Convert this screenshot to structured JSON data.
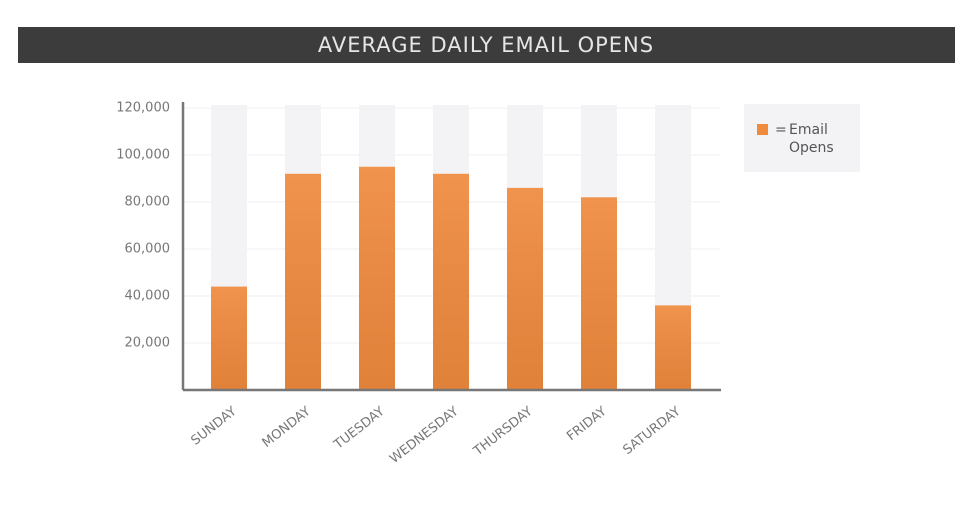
{
  "chart_data": {
    "type": "bar",
    "title": "AVERAGE DAILY EMAIL OPENS",
    "categories": [
      "SUNDAY",
      "MONDAY",
      "TUESDAY",
      "WEDNESDAY",
      "THURSDAY",
      "FRIDAY",
      "SATURDAY"
    ],
    "series": [
      {
        "name": "Email Opens",
        "color": "#ef8a3e",
        "values": [
          44000,
          92000,
          95000,
          92000,
          86000,
          82000,
          36000
        ]
      }
    ],
    "legend_separator": "=",
    "legend_position": "right",
    "ylim": [
      0,
      120000
    ],
    "yticks": [
      {
        "value": 20000,
        "label": "20,000"
      },
      {
        "value": 40000,
        "label": "40,000"
      },
      {
        "value": 60000,
        "label": "60,000"
      },
      {
        "value": 80000,
        "label": "80,000"
      },
      {
        "value": 100000,
        "label": "100,000"
      },
      {
        "value": 120000,
        "label": "120,000"
      }
    ],
    "grid": true
  }
}
